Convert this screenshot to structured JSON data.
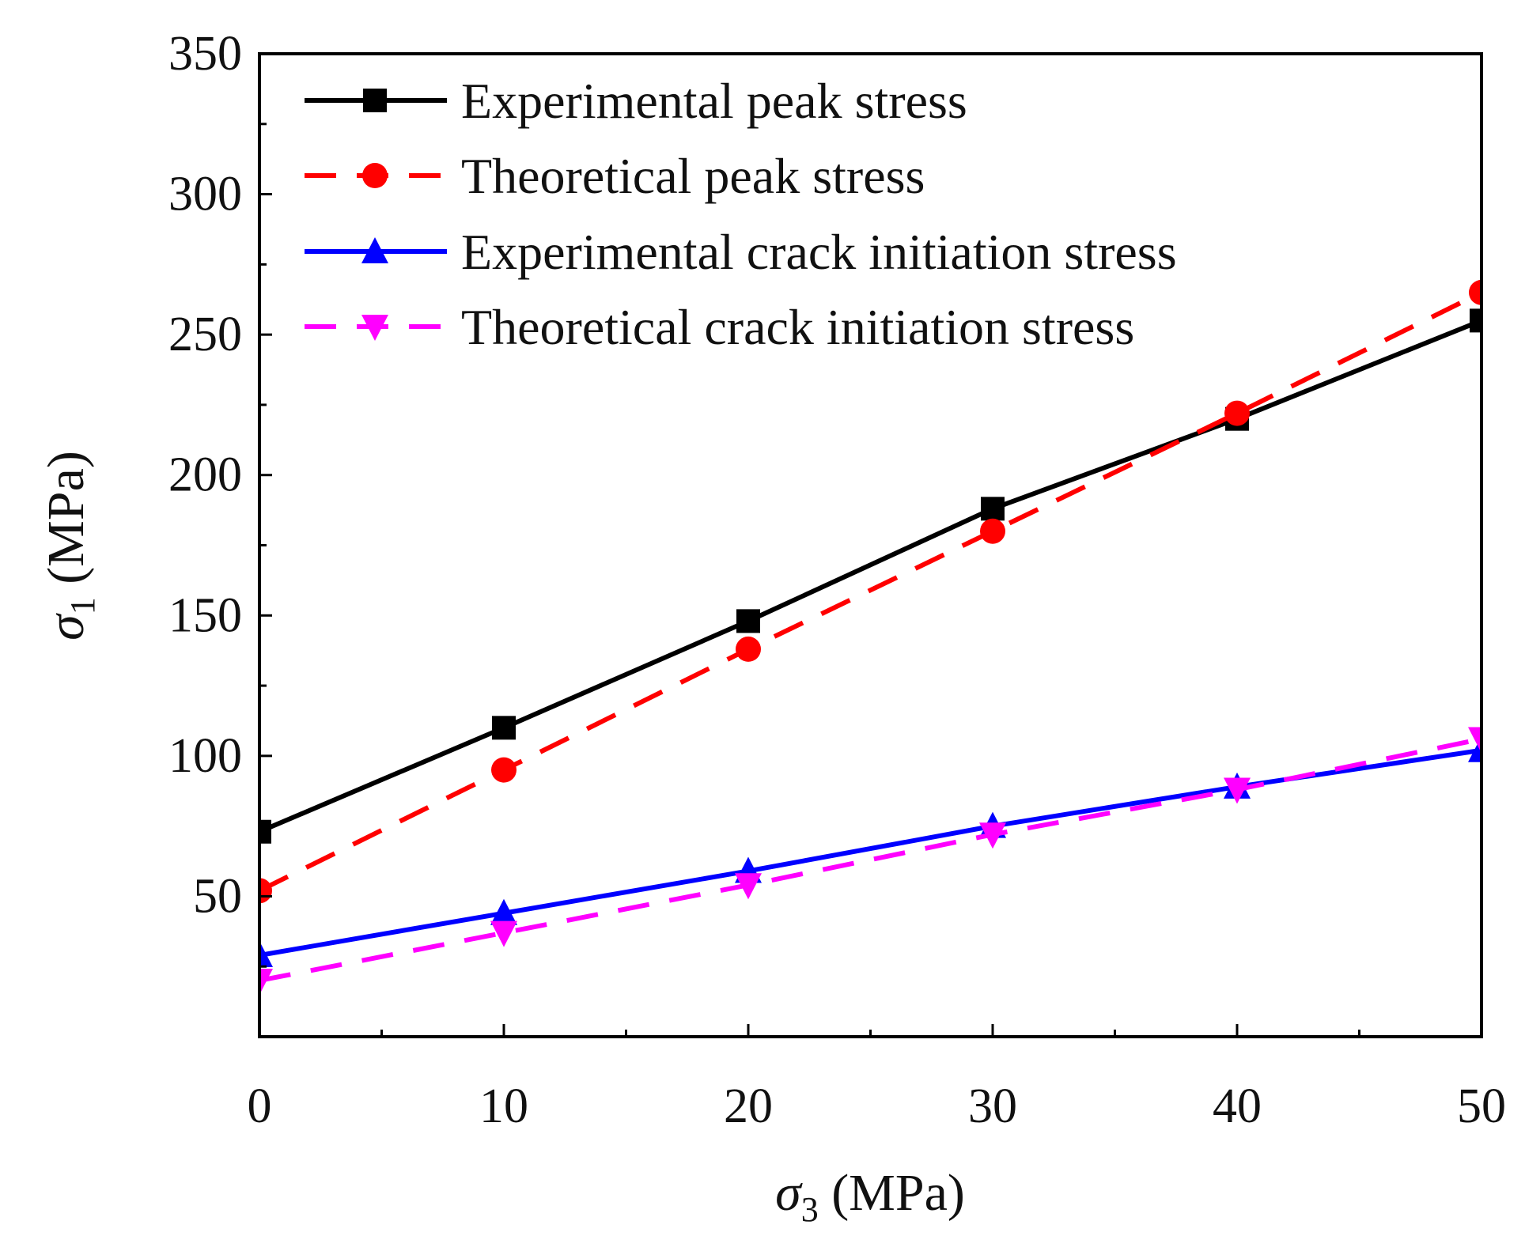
{
  "chart_data": {
    "type": "line",
    "title": "",
    "xlabel": "σ3 (MPa)",
    "ylabel": "σ1 (MPa)",
    "xlabel_symbol": "σ",
    "xlabel_sub": "3",
    "xlabel_unit": " (MPa)",
    "ylabel_symbol": "σ",
    "ylabel_sub": "1",
    "ylabel_unit": " (MPa)",
    "xlim": [
      0,
      50
    ],
    "ylim": [
      0,
      350
    ],
    "xticks": [
      "0",
      "10",
      "20",
      "30",
      "40",
      "50"
    ],
    "yticks": [
      "50",
      "100",
      "150",
      "200",
      "250",
      "300",
      "350"
    ],
    "grid": false,
    "legend_position": "top-left",
    "x": [
      0,
      10,
      20,
      30,
      40,
      50
    ],
    "series": [
      {
        "name": "Experimental peak stress",
        "values": [
          73,
          110,
          148,
          188,
          220,
          255
        ],
        "color": "#000000",
        "dash": "solid",
        "marker": "square"
      },
      {
        "name": "Theoretical peak stress",
        "values": [
          52,
          95,
          138,
          180,
          222,
          265
        ],
        "color": "#ff0000",
        "dash": "dashed",
        "marker": "circle"
      },
      {
        "name": "Experimental crack initiation stress",
        "values": [
          29,
          44,
          59,
          75,
          89,
          102
        ],
        "color": "#0000ff",
        "dash": "solid",
        "marker": "triangle-up"
      },
      {
        "name": "Theoretical crack initiation stress",
        "values": [
          20,
          37,
          54,
          72,
          88,
          106
        ],
        "color": "#ff00ff",
        "dash": "dashed",
        "marker": "triangle-down"
      }
    ]
  }
}
